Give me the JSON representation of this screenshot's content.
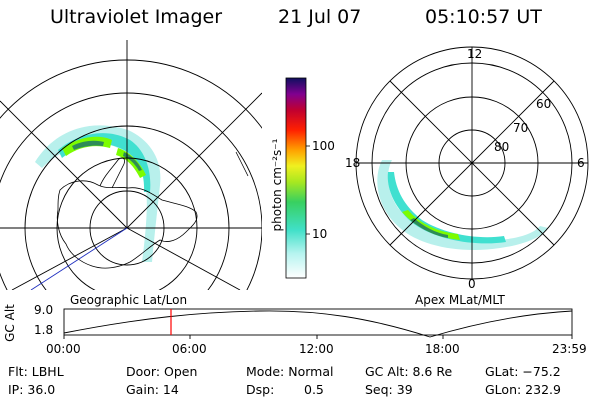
{
  "header": {
    "instrument": "Ultraviolet Imager",
    "date": "21 Jul 07",
    "time": "05:10:57 UT"
  },
  "left_panel": {
    "caption": "Geographic Lat/Lon"
  },
  "right_panel": {
    "caption": "Apex MLat/MLT",
    "mlt_labels": [
      "12",
      "18",
      "6",
      "0"
    ],
    "lat_labels": [
      "60",
      "70",
      "80"
    ]
  },
  "colorbar": {
    "unit_label": "photon cm⁻²s⁻¹",
    "ticks": [
      "100",
      "10"
    ]
  },
  "altitude_plot": {
    "ylabel": "GC Alt",
    "ymax_label": "9.0",
    "ymin_label": "1.8",
    "time_ticks": [
      "00:00",
      "06:00",
      "12:00",
      "18:00",
      "23:59"
    ],
    "marker_color": "#ff0000"
  },
  "info": {
    "flt": "Flt: LBHL",
    "door": "Door: Open",
    "mode": "Mode: Normal",
    "gc_alt": "GC Alt: 8.6 Re",
    "glat": "GLat: −75.2",
    "ip": "IP: 36.0",
    "gain": "Gain: 14",
    "dsp_label": "Dsp:",
    "dsp_value": "0.5",
    "seq": "Seq: 39",
    "glon": "GLon: 232.9"
  },
  "colors": {
    "aurora_low": "#40e0d0",
    "aurora_mid": "#7cfc00",
    "aurora_high": "#2e8b57"
  }
}
